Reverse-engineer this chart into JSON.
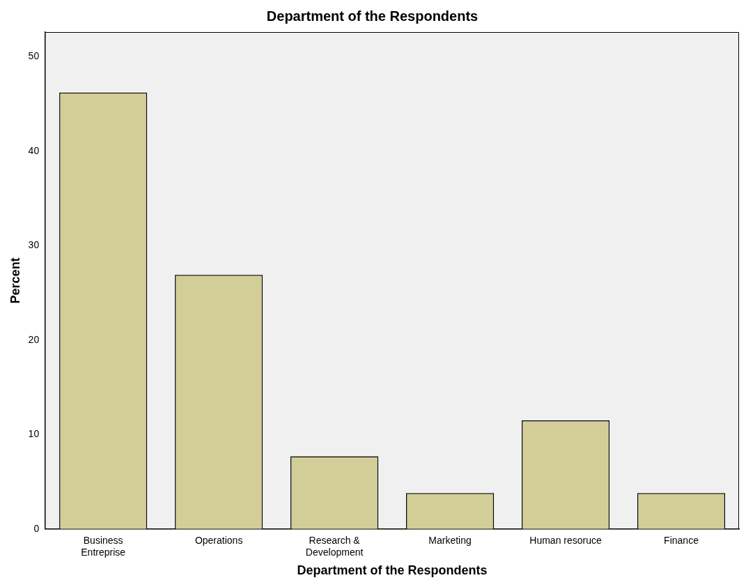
{
  "chart_data": {
    "type": "bar",
    "title": "Department of the Respondents",
    "xlabel": "Department of the Respondents",
    "ylabel": "Percent",
    "categories": [
      "Business\nEntreprise",
      "Operations",
      "Research &\nDevelopment",
      "Marketing",
      "Human resoruce",
      "Finance"
    ],
    "values": [
      46.2,
      26.9,
      7.7,
      3.8,
      11.5,
      3.8
    ],
    "color": "#d3ce97",
    "ylim": [
      0,
      52.6
    ],
    "yticks": [
      0,
      10,
      20,
      30,
      40,
      50
    ],
    "grid": false,
    "legend": false
  }
}
